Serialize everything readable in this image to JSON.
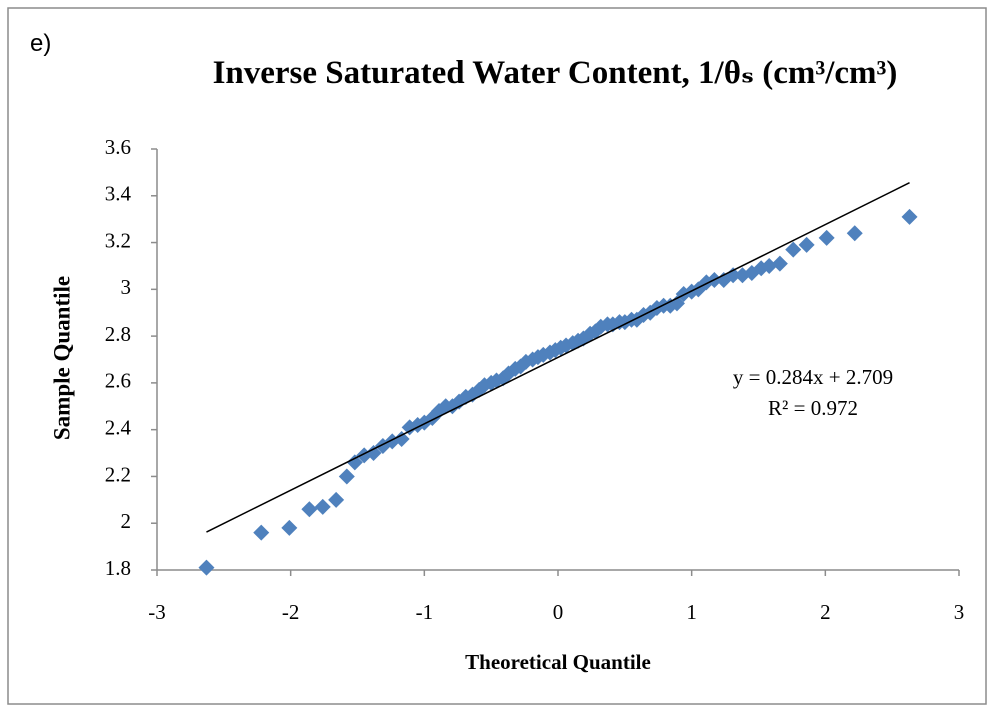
{
  "chart_data": {
    "type": "scatter",
    "panel_label": "e)",
    "title": "Inverse Saturated Water Content, 1/θₛ (cm³/cm³)",
    "x_label": "Theoretical Quantile",
    "y_label": "Sample Quantile",
    "color": "#4f81bd",
    "x": [
      -2.63,
      -2.22,
      -2.01,
      -1.86,
      -1.76,
      -1.66,
      -1.58,
      -1.52,
      -1.45,
      -1.38,
      -1.31,
      -1.24,
      -1.17,
      -1.11,
      -1.05,
      -1.0,
      -0.94,
      -0.89,
      -0.84,
      -0.79,
      -0.74,
      -0.69,
      -0.64,
      -0.59,
      -0.55,
      -0.5,
      -0.46,
      -0.41,
      -0.37,
      -0.32,
      -0.28,
      -0.24,
      -0.19,
      -0.15,
      -0.11,
      -0.06,
      -0.02,
      0.02,
      0.06,
      0.11,
      0.15,
      0.19,
      0.24,
      0.28,
      0.32,
      0.37,
      0.41,
      0.46,
      0.5,
      0.55,
      0.59,
      0.64,
      0.69,
      0.74,
      0.79,
      0.84,
      0.89,
      0.94,
      1.0,
      1.05,
      1.11,
      1.17,
      1.24,
      1.31,
      1.38,
      1.45,
      1.52,
      1.58,
      1.66,
      1.76,
      1.86,
      2.01,
      2.22,
      2.63
    ],
    "values": [
      1.81,
      1.96,
      1.98,
      2.06,
      2.07,
      2.1,
      2.2,
      2.26,
      2.29,
      2.3,
      2.33,
      2.35,
      2.36,
      2.41,
      2.42,
      2.43,
      2.45,
      2.48,
      2.5,
      2.5,
      2.52,
      2.54,
      2.55,
      2.57,
      2.59,
      2.6,
      2.61,
      2.62,
      2.64,
      2.66,
      2.67,
      2.69,
      2.7,
      2.71,
      2.72,
      2.73,
      2.74,
      2.75,
      2.76,
      2.77,
      2.78,
      2.79,
      2.81,
      2.82,
      2.84,
      2.85,
      2.85,
      2.86,
      2.86,
      2.87,
      2.87,
      2.89,
      2.9,
      2.92,
      2.93,
      2.93,
      2.94,
      2.98,
      2.99,
      3.0,
      3.03,
      3.04,
      3.04,
      3.06,
      3.06,
      3.07,
      3.09,
      3.1,
      3.11,
      3.17,
      3.19,
      3.22,
      3.24,
      3.31
    ],
    "trendline": {
      "slope": 0.284,
      "intercept": 2.709,
      "color": "#000000"
    },
    "annotations": [
      "y = 0.284x + 2.709",
      "R² = 0.972"
    ],
    "xlim": [
      -3,
      3
    ],
    "xticks": [
      -3,
      -2,
      -1,
      0,
      1,
      2,
      3
    ],
    "ylim": [
      1.8,
      3.6
    ],
    "yticks": [
      1.8,
      2,
      2.2,
      2.4,
      2.6,
      2.8,
      3,
      3.2,
      3.4,
      3.6
    ],
    "grid": false
  }
}
